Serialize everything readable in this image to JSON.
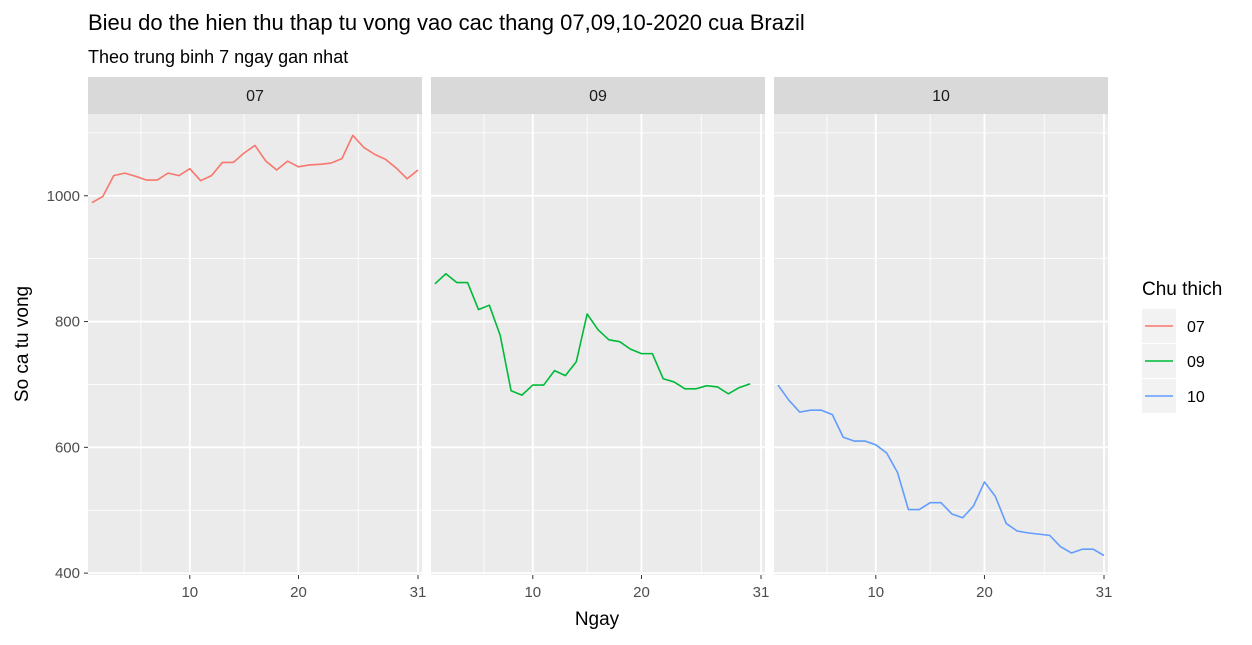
{
  "chart_data": {
    "type": "line",
    "title": "Bieu do the hien thu thap tu vong vao cac thang 07,09,10-2020 cua Brazil",
    "subtitle": "Theo trung binh 7 ngay gan nhat",
    "xlabel": "Ngay",
    "ylabel": "So ca tu vong",
    "xlim": [
      1,
      31
    ],
    "ylim": [
      397,
      1130
    ],
    "x_ticks": [
      10,
      20,
      31
    ],
    "y_ticks": [
      400,
      600,
      800,
      1000
    ],
    "facet_variable": "month",
    "grid": true,
    "legend_position": "right",
    "legend_title": "Chu thich",
    "series": [
      {
        "name": "07",
        "facet_label": "07",
        "color": "#F8766D",
        "x": [
          1,
          2,
          3,
          4,
          5,
          6,
          7,
          8,
          9,
          10,
          11,
          12,
          13,
          14,
          15,
          16,
          17,
          18,
          19,
          20,
          21,
          22,
          23,
          24,
          25,
          26,
          27,
          28,
          29,
          30,
          31
        ],
        "values": [
          989,
          999,
          1032,
          1036,
          1031,
          1025,
          1025,
          1036,
          1032,
          1043,
          1024,
          1032,
          1053,
          1053,
          1068,
          1080,
          1055,
          1041,
          1055,
          1046,
          1049,
          1050,
          1052,
          1059,
          1096,
          1077,
          1066,
          1058,
          1044,
          1027,
          1041
        ]
      },
      {
        "name": "09",
        "facet_label": "09",
        "color": "#00BA38",
        "x": [
          1,
          2,
          3,
          4,
          5,
          6,
          7,
          8,
          9,
          10,
          11,
          12,
          13,
          14,
          15,
          16,
          17,
          18,
          19,
          20,
          21,
          22,
          23,
          24,
          25,
          26,
          27,
          28,
          29,
          30
        ],
        "values": [
          860,
          876,
          862,
          862,
          819,
          826,
          778,
          690,
          683,
          699,
          699,
          722,
          714,
          736,
          812,
          787,
          771,
          768,
          756,
          749,
          749,
          709,
          704,
          693,
          693,
          698,
          696,
          685,
          695,
          701
        ]
      },
      {
        "name": "10",
        "facet_label": "10",
        "color": "#619CFF",
        "x": [
          1,
          2,
          3,
          4,
          5,
          6,
          7,
          8,
          9,
          10,
          11,
          12,
          13,
          14,
          15,
          16,
          17,
          18,
          19,
          20,
          21,
          22,
          23,
          24,
          25,
          26,
          27,
          28,
          29,
          30,
          31
        ],
        "values": [
          699,
          675,
          656,
          659,
          659,
          652,
          616,
          610,
          610,
          604,
          591,
          560,
          501,
          501,
          512,
          512,
          494,
          488,
          507,
          545,
          522,
          479,
          467,
          464,
          462,
          460,
          442,
          432,
          438,
          438,
          428
        ]
      }
    ]
  }
}
